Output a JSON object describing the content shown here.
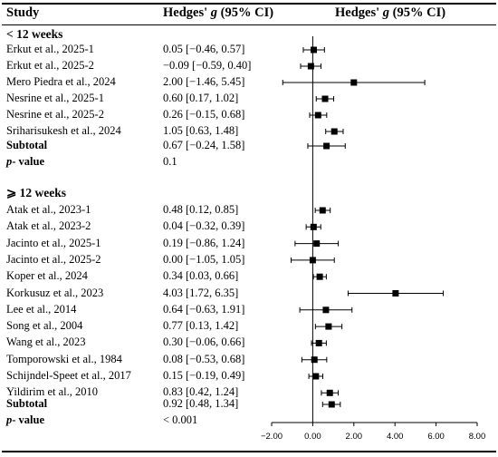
{
  "headers": {
    "study": "Study",
    "effect_prefix": "Hedges'",
    "effect_symbol": "g",
    "effect_suffix": "(95% CI)"
  },
  "chart_data": {
    "type": "forest",
    "xlim": [
      -2.0,
      8.0
    ],
    "xticks": [
      "-2.00",
      "0.00",
      "2.00",
      "4.00",
      "6.00",
      "8.00"
    ],
    "xtick_values": [
      -2,
      0,
      2,
      4,
      6,
      8
    ],
    "reference_line": 0,
    "groups": [
      {
        "label": "< 12 weeks",
        "studies": [
          {
            "name": "Erkut et al., 2025-1",
            "g": 0.05,
            "lo": -0.46,
            "hi": 0.57,
            "ci_text": "0.05 [−0.46, 0.57]"
          },
          {
            "name": "Erkut et al., 2025-2",
            "g": -0.09,
            "lo": -0.59,
            "hi": 0.4,
            "ci_text": "−0.09 [−0.59, 0.40]"
          },
          {
            "name": "Mero Piedra et al., 2024",
            "g": 2.0,
            "lo": -1.46,
            "hi": 5.45,
            "ci_text": "2.00 [−1.46, 5.45]"
          },
          {
            "name": "Nesrine et al., 2025-1",
            "g": 0.6,
            "lo": 0.17,
            "hi": 1.02,
            "ci_text": "0.60 [0.17, 1.02]"
          },
          {
            "name": "Nesrine et al., 2025-2",
            "g": 0.26,
            "lo": -0.15,
            "hi": 0.68,
            "ci_text": "0.26 [−0.15, 0.68]"
          },
          {
            "name": "Sriharisukesh et al., 2024",
            "g": 1.05,
            "lo": 0.63,
            "hi": 1.48,
            "ci_text": "1.05 [0.63, 1.48]"
          }
        ],
        "subtotal": {
          "name": "Subtotal",
          "g": 0.67,
          "lo": -0.24,
          "hi": 1.58,
          "ci_text": "0.67 [−0.24, 1.58]"
        },
        "p_label_bold": "p",
        "p_label_rest": "- value",
        "p_value": "0.1"
      },
      {
        "label": "⩾ 12 weeks",
        "studies": [
          {
            "name": "Atak et al., 2023-1",
            "g": 0.48,
            "lo": 0.12,
            "hi": 0.85,
            "ci_text": "0.48 [0.12, 0.85]"
          },
          {
            "name": "Atak et al., 2023-2",
            "g": 0.04,
            "lo": -0.32,
            "hi": 0.39,
            "ci_text": "0.04 [−0.32, 0.39]"
          },
          {
            "name": "Jacinto et al., 2025-1",
            "g": 0.19,
            "lo": -0.86,
            "hi": 1.24,
            "ci_text": "0.19 [−0.86, 1.24]"
          },
          {
            "name": "Jacinto et al., 2025-2",
            "g": 0.0,
            "lo": -1.05,
            "hi": 1.05,
            "ci_text": "0.00 [−1.05, 1.05]"
          },
          {
            "name": "Koper et al., 2024",
            "g": 0.34,
            "lo": 0.03,
            "hi": 0.66,
            "ci_text": "0.34 [0.03, 0.66]"
          },
          {
            "name": "Korkusuz et al., 2023",
            "g": 4.03,
            "lo": 1.72,
            "hi": 6.35,
            "ci_text": "4.03 [1.72, 6.35]"
          },
          {
            "name": "Lee et al., 2014",
            "g": 0.64,
            "lo": -0.63,
            "hi": 1.91,
            "ci_text": "0.64 [−0.63, 1.91]"
          },
          {
            "name": "Song et al., 2004",
            "g": 0.77,
            "lo": 0.13,
            "hi": 1.42,
            "ci_text": "0.77 [0.13, 1.42]"
          },
          {
            "name": "Wang et al., 2023",
            "g": 0.3,
            "lo": -0.06,
            "hi": 0.66,
            "ci_text": "0.30 [−0.06, 0.66]"
          },
          {
            "name": "Tomporowski et al., 1984",
            "g": 0.08,
            "lo": -0.53,
            "hi": 0.68,
            "ci_text": "0.08 [−0.53, 0.68]"
          },
          {
            "name": "Schijndel-Speet et al., 2017",
            "g": 0.15,
            "lo": -0.19,
            "hi": 0.49,
            "ci_text": "0.15 [−0.19, 0.49]"
          },
          {
            "name": "Yildirim et al., 2010",
            "g": 0.83,
            "lo": 0.42,
            "hi": 1.24,
            "ci_text": "0.83 [0.42, 1.24]"
          }
        ],
        "subtotal": {
          "name": "Subtotal",
          "g": 0.92,
          "lo": 0.48,
          "hi": 1.34,
          "ci_text": "0.92 [0.48, 1.34]"
        },
        "p_label_bold": "p",
        "p_label_rest": "- value",
        "p_value": "< 0.001"
      }
    ]
  }
}
